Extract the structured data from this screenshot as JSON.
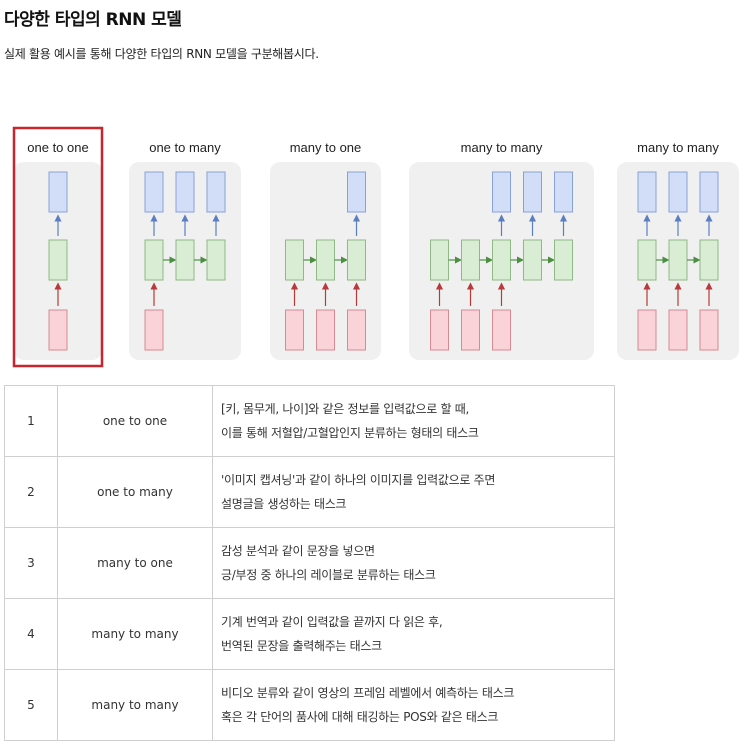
{
  "page": {
    "title": "다양한 타입의 RNN 모델",
    "subtitle": "실제 활용 예시를 통해 다양한 타입의 RNN 모델을 구분해봅시다."
  },
  "figure": {
    "panels": [
      {
        "label": "one to one",
        "inputs": 1,
        "hiddens": 1,
        "outputs": 1,
        "highlighted": true
      },
      {
        "label": "one to many",
        "inputs": 1,
        "hiddens": 3,
        "outputs": 3,
        "highlighted": false
      },
      {
        "label": "many to one",
        "inputs": 3,
        "hiddens": 3,
        "outputs": 1,
        "highlighted": false
      },
      {
        "label": "many to many",
        "inputs": 3,
        "hiddens": 5,
        "outputs": 3,
        "highlighted": false
      },
      {
        "label": "many to many",
        "inputs": 3,
        "hiddens": 3,
        "outputs": 3,
        "highlighted": false
      }
    ],
    "colors": {
      "input_fill": "#f9d3d7",
      "input_stroke": "#d88a93",
      "hidden_fill": "#d9ecd4",
      "hidden_stroke": "#8fb886",
      "output_fill": "#d2def8",
      "output_stroke": "#8aa0d8",
      "panel_bg": "#f0f0f0",
      "highlight": "#c8262c",
      "red_arrow": "#b73a3a",
      "green_arrow": "#4c8f43",
      "blue_arrow": "#5a7fc0"
    }
  },
  "table": {
    "rows": [
      {
        "num": "1",
        "name": "one to one",
        "desc": [
          "[키, 몸무게, 나이]와 같은 정보를 입력값으로 할 때,",
          "이를 통해 저혈압/고혈압인지 분류하는 형태의 태스크"
        ]
      },
      {
        "num": "2",
        "name": "one to many",
        "desc": [
          "'이미지 캡셔닝'과 같이 하나의 이미지를 입력값으로 주면",
          "설명글을 생성하는 태스크"
        ]
      },
      {
        "num": "3",
        "name": "many to one",
        "desc": [
          "감성 분석과 같이 문장을 넣으면",
          "긍/부정 중 하나의 레이블로 분류하는 태스크"
        ]
      },
      {
        "num": "4",
        "name": "many to many",
        "desc": [
          "기계 번역과 같이 입력값을 끝까지 다 읽은 후,",
          "번역된 문장을 출력해주는 태스크"
        ]
      },
      {
        "num": "5",
        "name": "many to many",
        "desc": [
          "비디오 분류와 같이 영상의 프레임 레벨에서 예측하는 태스크",
          "혹은 각 단어의 품사에 대해 태깅하는 POS와 같은 태스크"
        ]
      }
    ]
  }
}
